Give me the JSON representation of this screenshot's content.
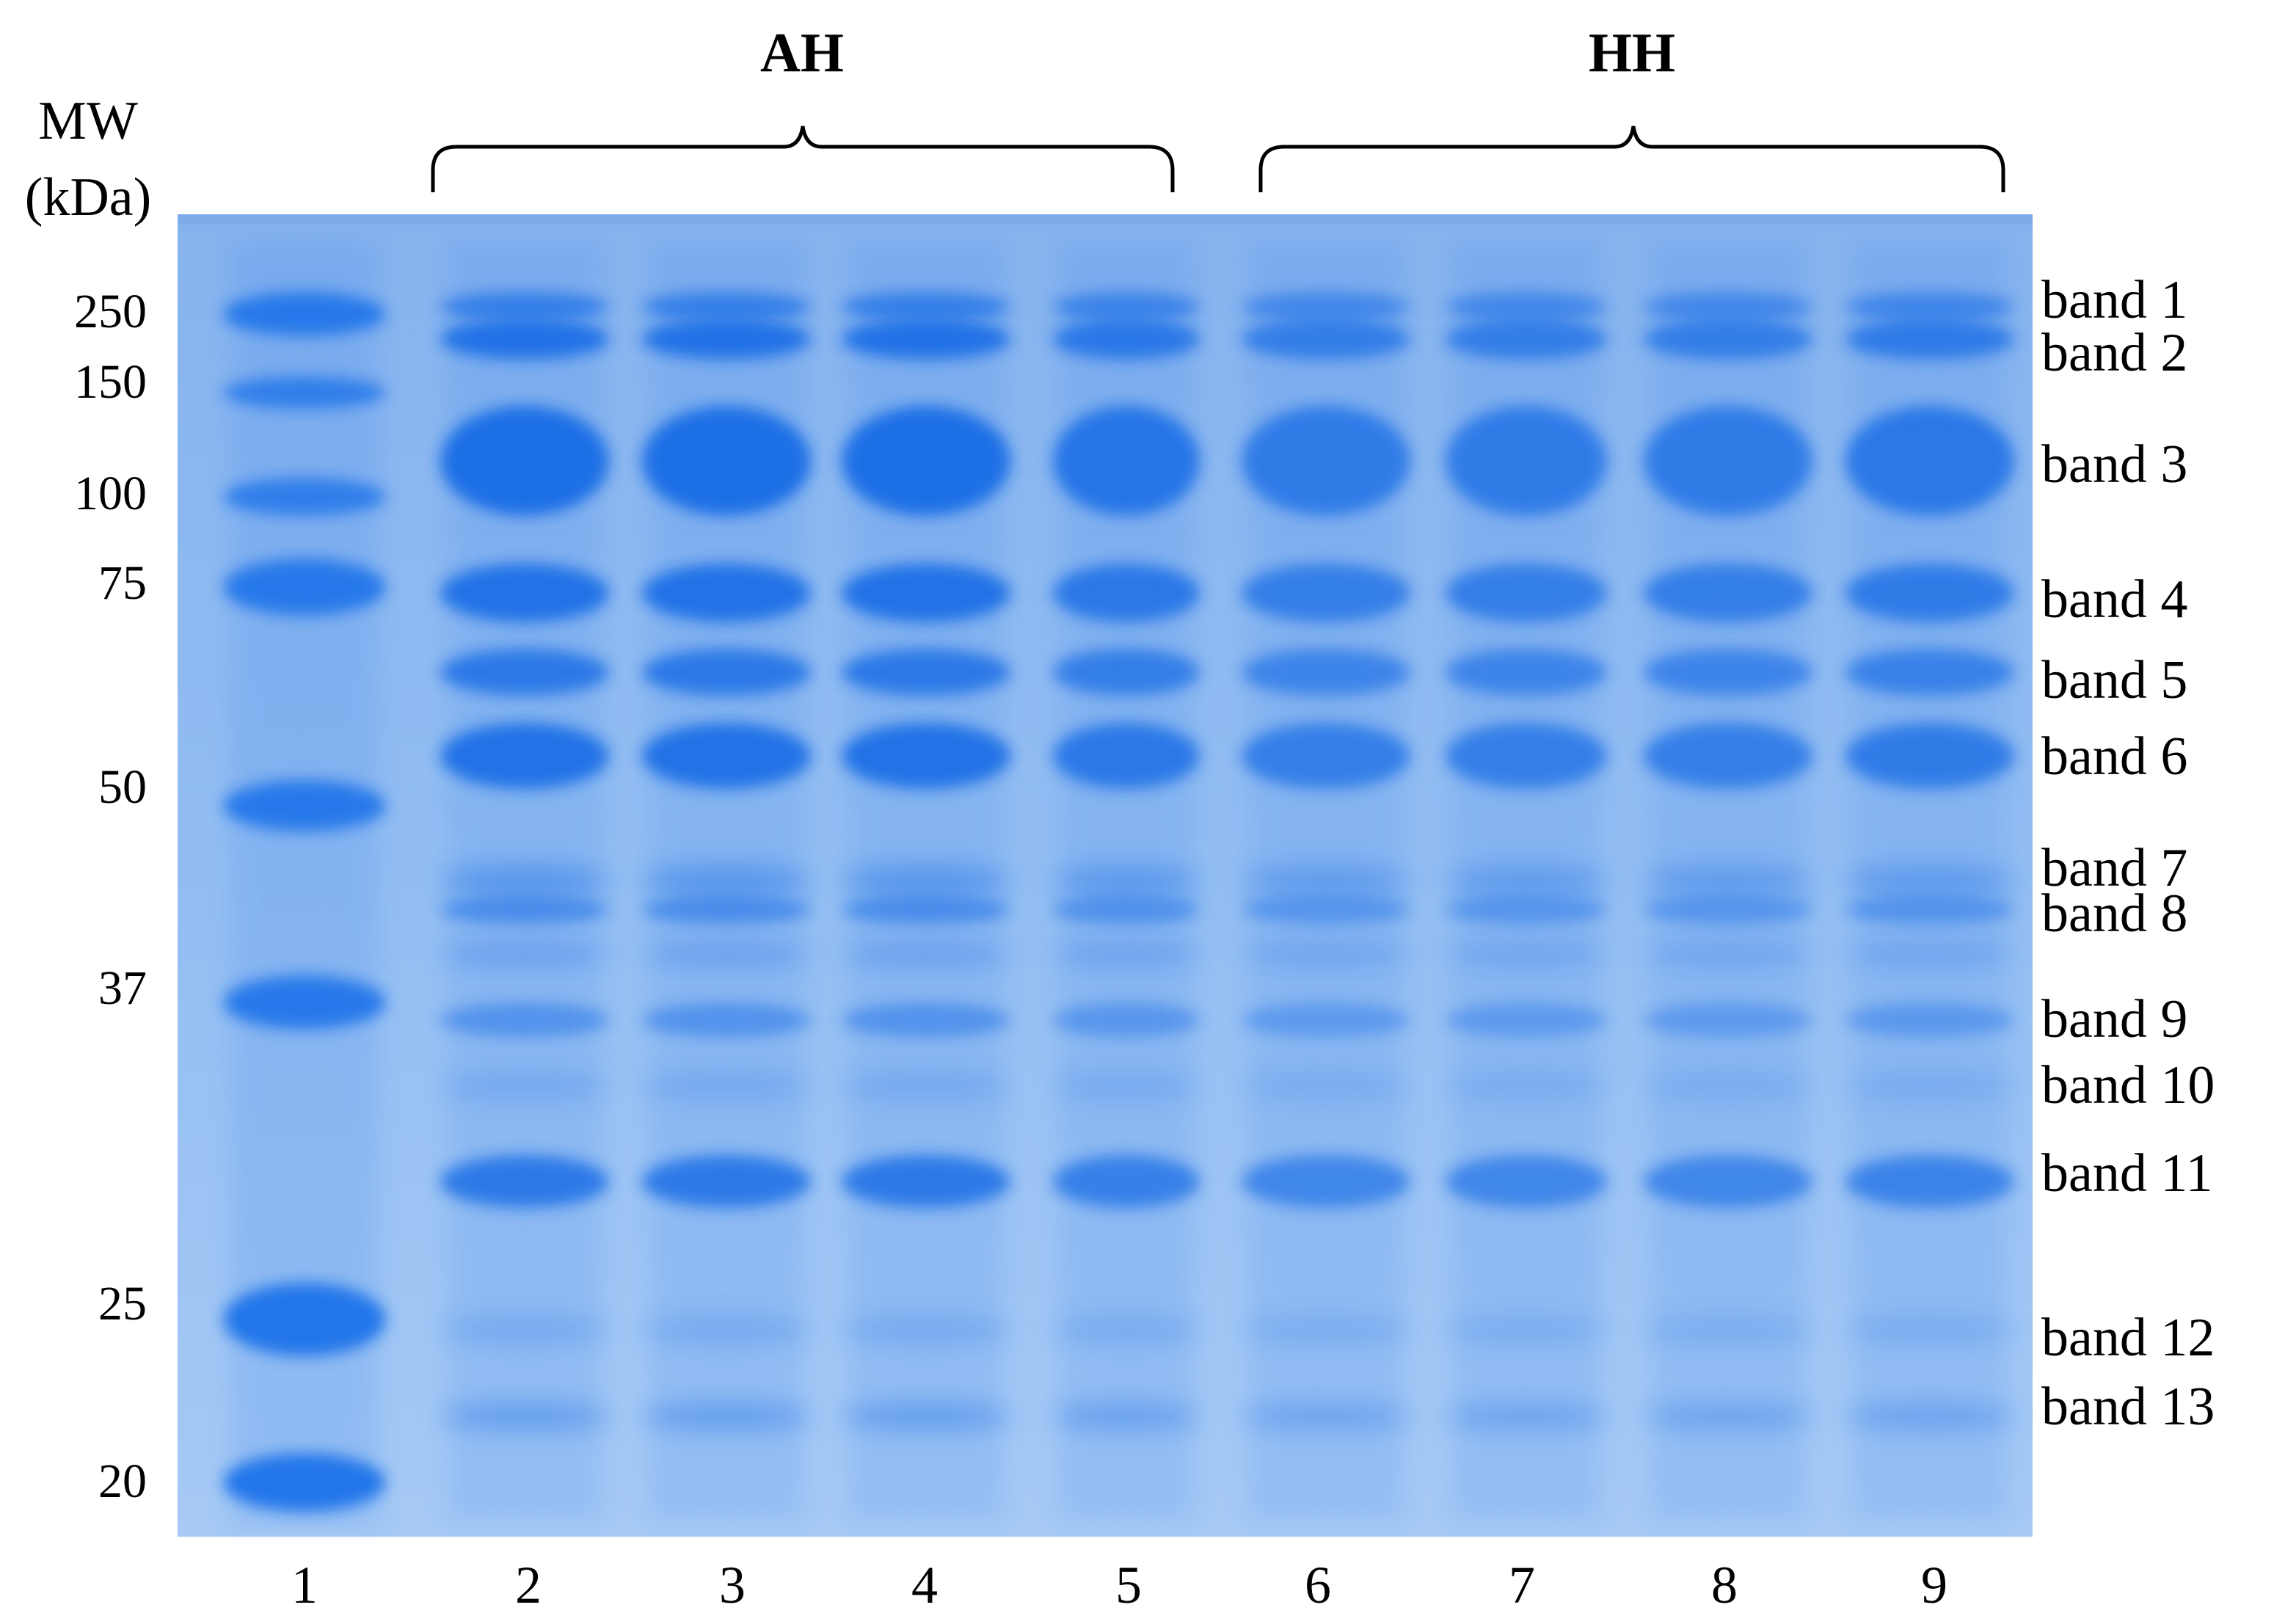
{
  "mw_header": {
    "line1": "MW",
    "line2": "(kDa)"
  },
  "mw_markers": [
    "250",
    "150",
    "100",
    "75",
    "50",
    "37",
    "25",
    "20"
  ],
  "groups": [
    {
      "label": "AH",
      "lanes": [
        "2",
        "3",
        "4",
        "5"
      ]
    },
    {
      "label": "HH",
      "lanes": [
        "6",
        "7",
        "8",
        "9"
      ]
    }
  ],
  "lane_numbers": [
    "1",
    "2",
    "3",
    "4",
    "5",
    "6",
    "7",
    "8",
    "9"
  ],
  "band_labels": [
    "band 1",
    "band 2",
    "band 3",
    "band 4",
    "band 5",
    "band 6",
    "band 7",
    "band 8",
    "band 9",
    "band 10",
    "band 11",
    "band 12",
    "band 13"
  ],
  "colors": {
    "gel_background": "#8fb8ee",
    "band": "#1a6fe6",
    "ladder": "#1d73ea",
    "text": "#000000"
  }
}
